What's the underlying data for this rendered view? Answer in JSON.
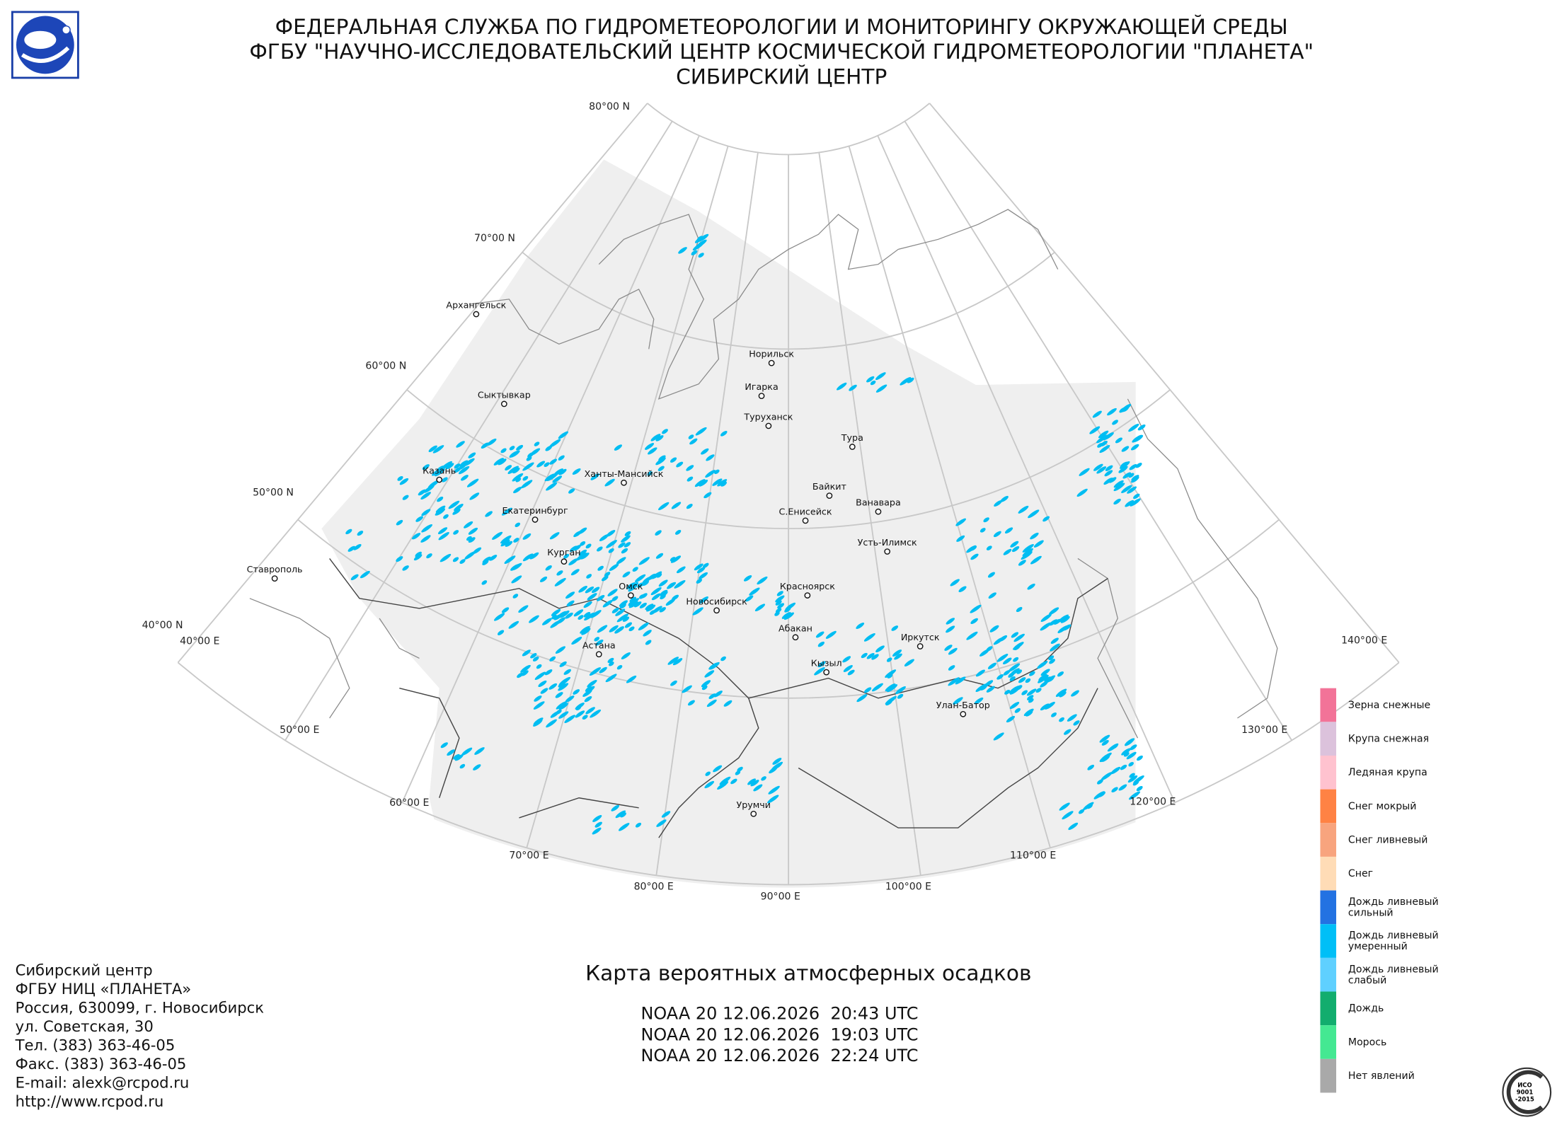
{
  "header": {
    "lines": [
      "ФЕДЕРАЛЬНАЯ СЛУЖБА ПО ГИДРОМЕТЕОРОЛОГИИ И МОНИТОРИНГУ ОКРУЖАЮЩЕЙ СРЕДЫ",
      "ФГБУ \"НАУЧНО-ИССЛЕДОВАТЕЛЬСКИЙ ЦЕНТР КОСМИЧЕСКОЙ ГИДРОМЕТЕОРОЛОГИИ \"ПЛАНЕТА\"",
      "СИБИРСКИЙ ЦЕНТР"
    ]
  },
  "map": {
    "latitude_labels": [
      "80°00 N",
      "70°00 N",
      "60°00 N",
      "50°00 N",
      "40°00 N"
    ],
    "longitude_labels": [
      "40°00 E",
      "50°00 E",
      "60°00 E",
      "70°00 E",
      "80°00 E",
      "90°00 E",
      "100°00 E",
      "110°00 E",
      "120°00 E",
      "130°00 E",
      "140°00 E"
    ],
    "cities": [
      "Архангельск",
      "Сыктывкар",
      "Казань",
      "Екатеринбург",
      "Курган",
      "Омск",
      "Ставрополь",
      "Астана",
      "Новосибирск",
      "Ханты-Мансийск",
      "Норильск",
      "Игарка",
      "Туруханск",
      "Тура",
      "Байкит",
      "Ванавара",
      "С.Енисейск",
      "Усть-Илимск",
      "Красноярск",
      "Абакан",
      "Кызыл",
      "Иркутск",
      "Улан-Батор",
      "Урумчи"
    ]
  },
  "legend": {
    "items": [
      {
        "lines": [
          "Зерна снежные"
        ],
        "color": "#f27398"
      },
      {
        "lines": [
          "Крупа снежная"
        ],
        "color": "#dcc2dc"
      },
      {
        "lines": [
          "Ледяная крупа"
        ],
        "color": "#ffc2cf"
      },
      {
        "lines": [
          "Снег мокрый"
        ],
        "color": "#ff8244"
      },
      {
        "lines": [
          "Снег ливневый"
        ],
        "color": "#f8a47e"
      },
      {
        "lines": [
          "Снег"
        ],
        "color": "#ffdcb6"
      },
      {
        "lines": [
          "Дождь ливневый",
          "сильный"
        ],
        "color": "#2372e2"
      },
      {
        "lines": [
          "Дождь ливневый",
          "умеренный"
        ],
        "color": "#00bff7"
      },
      {
        "lines": [
          "Дождь ливневый",
          "слабый"
        ],
        "color": "#5fd0ff"
      },
      {
        "lines": [
          "Дождь"
        ],
        "color": "#12ad6e"
      },
      {
        "lines": [
          "Морось"
        ],
        "color": "#44e892"
      },
      {
        "lines": [
          "Нет явлений"
        ],
        "color": "#a9a9a9"
      }
    ]
  },
  "footer": {
    "address": [
      "Сибирский центр",
      "ФГБУ НИЦ «ПЛАНЕТА»",
      "Россия, 630099, г. Новосибирск",
      "ул. Советская, 30",
      "Тел. (383) 363-46-05",
      "Факс. (383) 363-46-05",
      "E-mail: alexk@rcpod.ru",
      "http://www.rcpod.ru"
    ],
    "title": "Карта вероятных атмосферных осадков",
    "passes": [
      "NOAA 20 12.06.2026  20:43 UTC",
      "NOAA 20 12.06.2026  19:03 UTC",
      "NOAA 20 12.06.2026  22:24 UTC"
    ],
    "badge": [
      "ИСО",
      "9001",
      "-2015"
    ]
  }
}
